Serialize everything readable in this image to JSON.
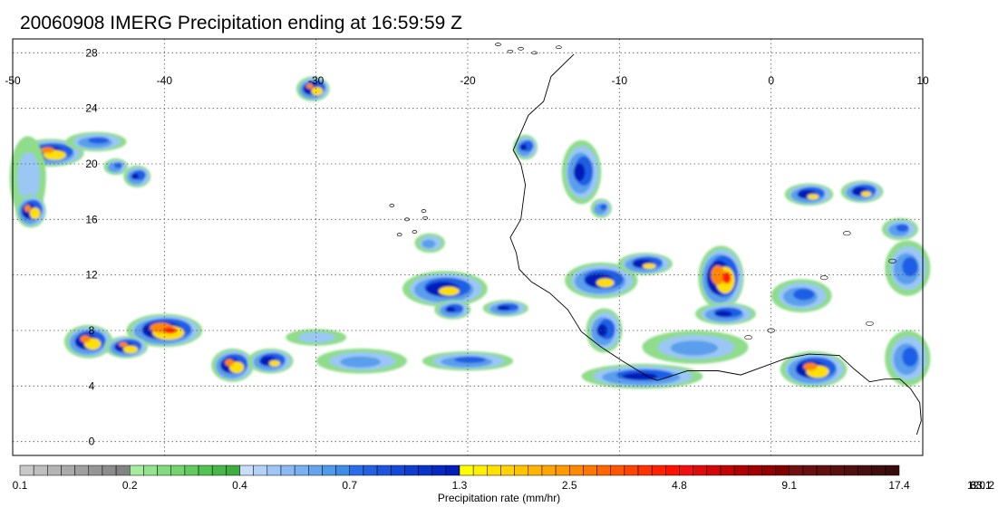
{
  "title": "20060908 IMERG Precipitation ending at 16:59:59 Z",
  "map": {
    "lon_range": [
      -50,
      10
    ],
    "lat_range": [
      -1,
      29
    ],
    "lon_ticks": [
      -50,
      -40,
      -30,
      -20,
      -10,
      0,
      10
    ],
    "lon_tick_labels": [
      "-50",
      "-40",
      "-30",
      "-20",
      "-10",
      "0",
      "10"
    ],
    "lat_ticks": [
      0,
      4,
      8,
      12,
      16,
      20,
      24,
      28
    ],
    "lat_tick_labels": [
      "0",
      "4",
      "8",
      "12",
      "16",
      "20",
      "24",
      "28"
    ],
    "grid": true,
    "coastline_color": "#000000"
  },
  "precip_cells": [
    {
      "lon": -47.5,
      "lat": 20.8,
      "rlon": 2.2,
      "rlat": 1.0,
      "max": 28
    },
    {
      "lon": -44.5,
      "lat": 21.6,
      "rlon": 2.0,
      "rlat": 0.7,
      "max": 3
    },
    {
      "lon": -49.0,
      "lat": 19.0,
      "rlon": 1.2,
      "rlat": 3.0,
      "max": 1
    },
    {
      "lon": -48.8,
      "lat": 16.6,
      "rlon": 1.0,
      "rlat": 1.2,
      "max": 30
    },
    {
      "lon": -41.8,
      "lat": 19.1,
      "rlon": 0.9,
      "rlat": 0.8,
      "max": 8
    },
    {
      "lon": -43.2,
      "lat": 19.8,
      "rlon": 0.8,
      "rlat": 0.6,
      "max": 3
    },
    {
      "lon": -30.2,
      "lat": 25.4,
      "rlon": 1.1,
      "rlat": 0.9,
      "max": 22
    },
    {
      "lon": -45.0,
      "lat": 7.2,
      "rlon": 1.6,
      "rlat": 1.2,
      "max": 25
    },
    {
      "lon": -40.0,
      "lat": 8.0,
      "rlon": 2.5,
      "rlat": 1.2,
      "max": 45
    },
    {
      "lon": -42.5,
      "lat": 6.8,
      "rlon": 1.4,
      "rlat": 0.8,
      "max": 22
    },
    {
      "lon": -35.5,
      "lat": 5.5,
      "rlon": 1.4,
      "rlat": 1.2,
      "max": 35
    },
    {
      "lon": -33.0,
      "lat": 5.8,
      "rlon": 1.5,
      "rlat": 0.9,
      "max": 18
    },
    {
      "lon": -21.5,
      "lat": 11.0,
      "rlon": 2.8,
      "rlat": 1.3,
      "max": 14
    },
    {
      "lon": -21.0,
      "lat": 9.5,
      "rlon": 1.2,
      "rlat": 0.7,
      "max": 5
    },
    {
      "lon": -17.5,
      "lat": 9.6,
      "rlon": 1.5,
      "rlat": 0.6,
      "max": 6
    },
    {
      "lon": -16.2,
      "lat": 21.2,
      "rlon": 0.8,
      "rlat": 0.9,
      "max": 8
    },
    {
      "lon": -12.5,
      "lat": 19.4,
      "rlon": 1.3,
      "rlat": 2.3,
      "max": 6
    },
    {
      "lon": -11.2,
      "lat": 16.8,
      "rlon": 0.7,
      "rlat": 0.7,
      "max": 3
    },
    {
      "lon": -11.2,
      "lat": 11.6,
      "rlon": 2.4,
      "rlat": 1.3,
      "max": 18
    },
    {
      "lon": -8.3,
      "lat": 12.8,
      "rlon": 1.8,
      "rlat": 0.8,
      "max": 14
    },
    {
      "lon": -11.0,
      "lat": 8.0,
      "rlon": 1.2,
      "rlat": 1.6,
      "max": 8
    },
    {
      "lon": -8.5,
      "lat": 4.7,
      "rlon": 4.0,
      "rlat": 0.9,
      "max": 6
    },
    {
      "lon": -3.3,
      "lat": 11.8,
      "rlon": 1.5,
      "rlat": 2.3,
      "max": 60
    },
    {
      "lon": -3.0,
      "lat": 9.2,
      "rlon": 2.0,
      "rlat": 0.8,
      "max": 6
    },
    {
      "lon": 2.5,
      "lat": 17.8,
      "rlon": 1.6,
      "rlat": 0.8,
      "max": 15
    },
    {
      "lon": 6.0,
      "lat": 18.0,
      "rlon": 1.4,
      "rlat": 0.8,
      "max": 12
    },
    {
      "lon": 2.8,
      "lat": 5.2,
      "rlon": 2.2,
      "rlat": 1.3,
      "max": 25
    },
    {
      "lon": 9.0,
      "lat": 6.0,
      "rlon": 1.5,
      "rlat": 2.0,
      "max": 3
    },
    {
      "lon": 9.0,
      "lat": 12.5,
      "rlon": 1.5,
      "rlat": 2.0,
      "max": 2.5
    },
    {
      "lon": 2.0,
      "lat": 10.5,
      "rlon": 2.0,
      "rlat": 1.2,
      "max": 3
    },
    {
      "lon": -27.0,
      "lat": 5.8,
      "rlon": 3.0,
      "rlat": 0.9,
      "max": 1.2
    },
    {
      "lon": -20.0,
      "lat": 5.8,
      "rlon": 3.0,
      "rlat": 0.7,
      "max": 2.5
    },
    {
      "lon": -30.0,
      "lat": 7.5,
      "rlon": 2.0,
      "rlat": 0.6,
      "max": 0.8
    },
    {
      "lon": -22.5,
      "lat": 14.3,
      "rlon": 1.0,
      "rlat": 0.7,
      "max": 1.2
    },
    {
      "lon": -5.0,
      "lat": 6.8,
      "rlon": 3.5,
      "rlat": 1.2,
      "max": 2.0
    },
    {
      "lon": 8.5,
      "lat": 15.3,
      "rlon": 1.2,
      "rlat": 0.8,
      "max": 3.5
    }
  ],
  "colorbar": {
    "label": "Precipitation rate (mm/hr)",
    "colors": [
      "#c8c8c8",
      "#bebebe",
      "#b4b4b4",
      "#aaaaaa",
      "#a0a0a0",
      "#969696",
      "#8c8c8c",
      "#828282",
      "#a5eba0",
      "#94e38f",
      "#83db7f",
      "#72d36f",
      "#61cb5f",
      "#50c350",
      "#47b847",
      "#3eae3e",
      "#c8ddfa",
      "#b4d2f8",
      "#a0c6f5",
      "#8cbbf3",
      "#78b0f0",
      "#64a5ee",
      "#509aeb",
      "#3c8ee9",
      "#2b6de8",
      "#2461e2",
      "#1d55dc",
      "#1649d6",
      "#0f3dd0",
      "#0a34c8",
      "#0529c0",
      "#001eb8",
      "#ffff00",
      "#fff000",
      "#ffe100",
      "#ffd200",
      "#ffc300",
      "#ffb400",
      "#ffa500",
      "#ff9900",
      "#ff8800",
      "#ff7700",
      "#ff6600",
      "#ff5500",
      "#ff4400",
      "#ff3300",
      "#ff2200",
      "#ff1100",
      "#f01010",
      "#e00c0c",
      "#d00808",
      "#c00404",
      "#b00000",
      "#a00000",
      "#900000",
      "#800000",
      "#701010",
      "#681010",
      "#601010",
      "#581010",
      "#501010",
      "#480f0f",
      "#400e0e",
      "#380c0c"
    ],
    "tick_values": [
      "0.1",
      "0.2",
      "0.4",
      "0.7",
      "1.3",
      "2.5",
      "4.8",
      "9.1",
      "17.4",
      "33.1",
      "63.1",
      "120.2"
    ],
    "tick_positions": [
      0,
      8,
      16,
      24,
      32,
      40,
      48,
      56,
      64,
      72,
      80,
      88
    ]
  }
}
